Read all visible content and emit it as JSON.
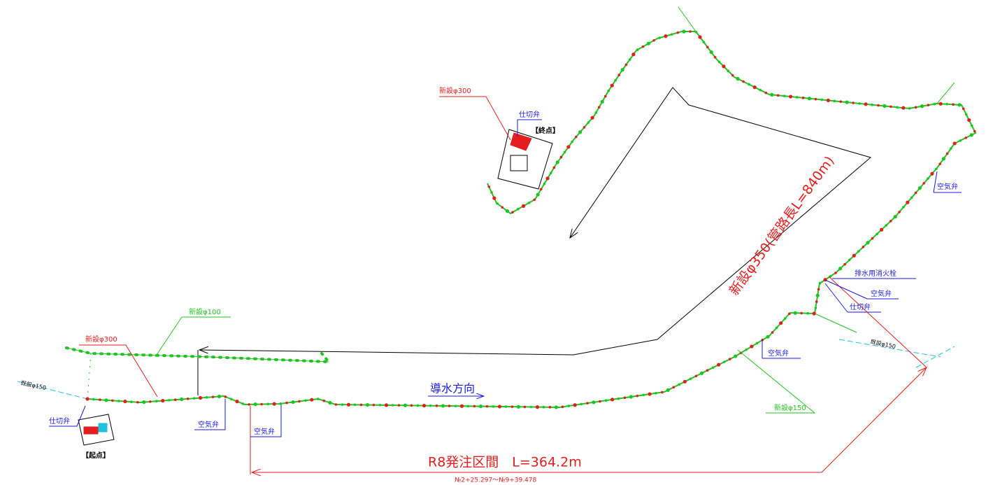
{
  "labels": [
    "新設φ300",
    "仕切弁",
    "【終点】",
    "空気弁",
    "新設φ350(管路長L=840m)",
    "排水用消火栓",
    "空気弁",
    "仕切弁",
    "新設φ100",
    "新設φ300",
    "既設φ150",
    "既設φ150",
    "空気弁",
    "導水方向",
    "新設φ150",
    "仕切弁",
    "空気弁",
    "空気弁",
    "【起点】",
    "R8発注区間　L=364.2m",
    "№2+25.297～№9+39.478"
  ]
}
